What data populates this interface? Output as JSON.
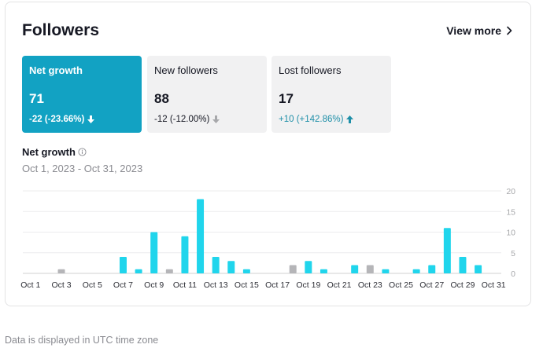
{
  "panel": {
    "title": "Followers",
    "view_more_label": "View more",
    "view_more_icon": "chevron-right-icon"
  },
  "metrics": [
    {
      "label": "Net growth",
      "value": "71",
      "change": "-22 (-23.66%)",
      "direction": "down",
      "active": true
    },
    {
      "label": "New followers",
      "value": "88",
      "change": "-12 (-12.00%)",
      "direction": "down",
      "active": false
    },
    {
      "label": "Lost followers",
      "value": "17",
      "change": "+10 (+142.86%)",
      "direction": "up",
      "active": false
    }
  ],
  "chart_section": {
    "title": "Net growth",
    "info_icon": "info-icon",
    "date_range": "Oct 1, 2023 - Oct 31, 2023"
  },
  "chart_data": {
    "type": "bar",
    "title": "",
    "categories": [
      "Oct 1",
      "Oct 2",
      "Oct 3",
      "Oct 4",
      "Oct 5",
      "Oct 6",
      "Oct 7",
      "Oct 8",
      "Oct 9",
      "Oct 10",
      "Oct 11",
      "Oct 12",
      "Oct 13",
      "Oct 14",
      "Oct 15",
      "Oct 16",
      "Oct 17",
      "Oct 18",
      "Oct 19",
      "Oct 20",
      "Oct 21",
      "Oct 22",
      "Oct 23",
      "Oct 24",
      "Oct 25",
      "Oct 26",
      "Oct 27",
      "Oct 28",
      "Oct 29",
      "Oct 30",
      "Oct 31"
    ],
    "x_tick_labels": [
      "Oct 1",
      "Oct 3",
      "Oct 5",
      "Oct 7",
      "Oct 9",
      "Oct 11",
      "Oct 13",
      "Oct 15",
      "Oct 17",
      "Oct 19",
      "Oct 21",
      "Oct 23",
      "Oct 25",
      "Oct 27",
      "Oct 29",
      "Oct 31"
    ],
    "values": [
      0,
      0,
      -1,
      0,
      0,
      0,
      4,
      1,
      10,
      -1,
      9,
      18,
      4,
      3,
      1,
      0,
      0,
      -2,
      3,
      1,
      0,
      2,
      -2,
      1,
      0,
      1,
      2,
      11,
      4,
      2,
      0
    ],
    "y_ticks": [
      0,
      5,
      10,
      15,
      20
    ],
    "ylim": [
      0,
      20
    ],
    "y_axis_side": "right",
    "grid": true,
    "positive_color": "#20d5ec",
    "negative_color": "#b5b5b8",
    "negative_display": "absolute value in gray"
  },
  "footer": {
    "note": "Data is displayed in UTC time zone"
  }
}
